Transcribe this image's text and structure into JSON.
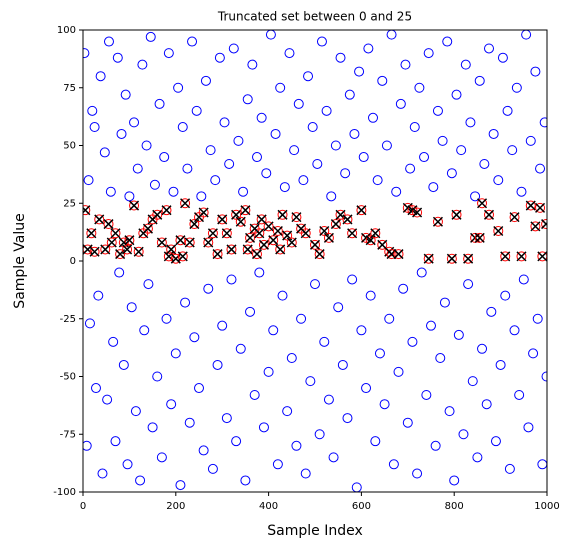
{
  "chart_data": {
    "type": "scatter",
    "title": "Truncated set between 0 and 25",
    "x_label": "Sample Index",
    "y_label": "Sample Value",
    "xlim": [
      0,
      1000
    ],
    "xticks": [
      0,
      200,
      400,
      600,
      800,
      1000
    ],
    "ylim": [
      -100,
      100
    ],
    "yticks": [
      -100,
      -75,
      -50,
      -25,
      0,
      25,
      50,
      75,
      100
    ],
    "series": [
      {
        "marker": "circle",
        "color": "blue",
        "x": [
          3,
          8,
          12,
          15,
          20,
          25,
          28,
          33,
          38,
          42,
          47,
          52,
          56,
          60,
          65,
          70,
          75,
          78,
          83,
          88,
          92,
          96,
          100,
          105,
          110,
          114,
          118,
          123,
          128,
          132,
          137,
          141,
          146,
          150,
          155,
          160,
          165,
          170,
          175,
          180,
          185,
          190,
          195,
          200,
          205,
          210,
          215,
          220,
          225,
          230,
          235,
          240,
          245,
          250,
          255,
          260,
          265,
          270,
          275,
          280,
          285,
          290,
          295,
          300,
          305,
          310,
          315,
          320,
          325,
          330,
          335,
          340,
          345,
          350,
          355,
          360,
          365,
          370,
          375,
          380,
          385,
          390,
          395,
          400,
          405,
          410,
          415,
          420,
          425,
          430,
          435,
          440,
          445,
          450,
          455,
          460,
          465,
          470,
          475,
          480,
          485,
          490,
          495,
          500,
          505,
          510,
          515,
          520,
          525,
          530,
          535,
          540,
          545,
          550,
          555,
          560,
          565,
          570,
          575,
          580,
          585,
          590,
          595,
          600,
          605,
          610,
          615,
          620,
          625,
          630,
          635,
          640,
          645,
          650,
          655,
          660,
          665,
          670,
          675,
          680,
          685,
          690,
          695,
          700,
          705,
          710,
          715,
          720,
          725,
          730,
          735,
          740,
          745,
          750,
          755,
          760,
          765,
          770,
          775,
          780,
          785,
          790,
          795,
          800,
          805,
          810,
          815,
          820,
          825,
          830,
          835,
          840,
          845,
          850,
          855,
          860,
          865,
          870,
          875,
          880,
          885,
          890,
          895,
          900,
          905,
          910,
          915,
          920,
          925,
          930,
          935,
          940,
          945,
          950,
          955,
          960,
          965,
          970,
          975,
          980,
          985,
          990,
          995,
          999
        ],
        "values": [
          90,
          -80,
          35,
          -27,
          65,
          58,
          -55,
          -15,
          80,
          -92,
          47,
          -60,
          95,
          30,
          -35,
          -78,
          88,
          -5,
          55,
          -45,
          72,
          -88,
          28,
          -20,
          60,
          -65,
          40,
          -95,
          85,
          -30,
          50,
          -10,
          97,
          -72,
          33,
          -50,
          68,
          -85,
          45,
          -25,
          90,
          -62,
          30,
          -40,
          75,
          -97,
          58,
          -18,
          40,
          -70,
          95,
          -33,
          65,
          -55,
          28,
          -82,
          78,
          -12,
          48,
          -90,
          35,
          -45,
          88,
          -28,
          60,
          -68,
          42,
          -8,
          92,
          -78,
          52,
          -38,
          30,
          -95,
          70,
          -22,
          85,
          -58,
          45,
          -5,
          62,
          -72,
          38,
          -48,
          98,
          -30,
          55,
          -88,
          75,
          -15,
          32,
          -65,
          90,
          -42,
          48,
          -80,
          68,
          -25,
          35,
          -92,
          80,
          -52,
          58,
          -10,
          42,
          -75,
          95,
          -35,
          65,
          -60,
          28,
          -85,
          50,
          -20,
          88,
          -45,
          38,
          -68,
          72,
          -8,
          55,
          -98,
          82,
          -30,
          45,
          -55,
          92,
          -15,
          62,
          -78,
          35,
          -40,
          78,
          -62,
          50,
          -25,
          98,
          -88,
          30,
          -48,
          68,
          -12,
          85,
          -70,
          40,
          -35,
          58,
          -92,
          75,
          -5,
          45,
          -58,
          90,
          -28,
          32,
          -80,
          65,
          -42,
          52,
          -18,
          95,
          -65,
          38,
          -95,
          72,
          -32,
          48,
          -75,
          85,
          -10,
          60,
          -52,
          28,
          -85,
          78,
          -38,
          42,
          -62,
          92,
          -22,
          55,
          -78,
          35,
          -45,
          88,
          -15,
          65,
          -90,
          48,
          -30,
          75,
          -58,
          30,
          -8,
          98,
          -72,
          52,
          -40,
          82,
          -25,
          40,
          -88,
          60,
          -50
        ]
      },
      {
        "marker": "circle-x",
        "color": "red",
        "cross_color": "black",
        "x": [
          5,
          10,
          18,
          25,
          35,
          48,
          55,
          62,
          70,
          80,
          88,
          95,
          100,
          110,
          120,
          130,
          140,
          150,
          160,
          170,
          180,
          185,
          190,
          200,
          210,
          215,
          220,
          230,
          240,
          250,
          260,
          270,
          280,
          290,
          300,
          310,
          320,
          330,
          340,
          350,
          355,
          360,
          370,
          375,
          380,
          385,
          390,
          400,
          410,
          420,
          425,
          430,
          440,
          450,
          460,
          470,
          480,
          500,
          510,
          520,
          530,
          545,
          555,
          570,
          580,
          600,
          610,
          620,
          630,
          645,
          660,
          665,
          680,
          700,
          710,
          720,
          745,
          765,
          795,
          805,
          830,
          845,
          855,
          860,
          875,
          895,
          910,
          930,
          945,
          965,
          975,
          985,
          990,
          998
        ],
        "values": [
          22,
          5,
          12,
          4,
          18,
          5,
          16,
          8,
          12,
          3,
          8,
          5,
          9,
          24,
          4,
          12,
          14,
          18,
          20,
          8,
          22,
          2,
          5,
          1,
          9,
          2,
          25,
          8,
          16,
          19,
          21,
          8,
          12,
          3,
          18,
          12,
          5,
          20,
          17,
          22,
          5,
          10,
          14,
          3,
          12,
          18,
          7,
          15,
          9,
          13,
          5,
          20,
          11,
          8,
          19,
          14,
          12,
          7,
          3,
          13,
          10,
          16,
          20,
          18,
          12,
          22,
          10,
          9,
          12,
          7,
          4,
          3,
          3,
          23,
          22,
          21,
          1,
          17,
          1,
          20,
          1,
          10,
          10,
          25,
          20,
          13,
          2,
          19,
          2,
          24,
          15,
          23,
          2,
          16
        ]
      }
    ]
  }
}
